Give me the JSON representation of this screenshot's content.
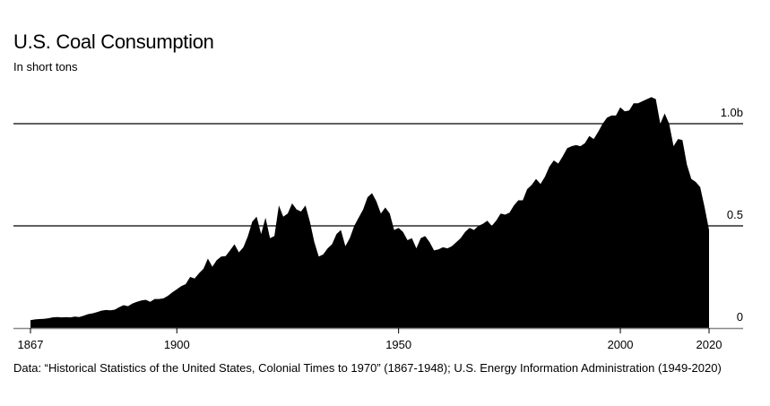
{
  "chart_data": {
    "type": "area",
    "title": "U.S. Coal Consumption",
    "subtitle": "In short tons",
    "xlabel": "",
    "ylabel": "",
    "xlim": [
      1867,
      2020
    ],
    "ylim": [
      0,
      1.0
    ],
    "y_unit": "billion short tons",
    "grid": true,
    "x_ticks": [
      {
        "value": 1867,
        "label": "1867"
      },
      {
        "value": 1900,
        "label": "1900"
      },
      {
        "value": 1950,
        "label": "1950"
      },
      {
        "value": 2000,
        "label": "2000"
      },
      {
        "value": 2020,
        "label": "2020"
      }
    ],
    "y_ticks": [
      {
        "value": 0,
        "label": "0"
      },
      {
        "value": 0.5,
        "label": "0.5"
      },
      {
        "value": 1.0,
        "label": "1.0b"
      }
    ],
    "fill_color": "#000000",
    "series": [
      {
        "name": "U.S. Coal Consumption",
        "x": [
          1867,
          1868,
          1869,
          1870,
          1871,
          1872,
          1873,
          1874,
          1875,
          1876,
          1877,
          1878,
          1879,
          1880,
          1881,
          1882,
          1883,
          1884,
          1885,
          1886,
          1887,
          1888,
          1889,
          1890,
          1891,
          1892,
          1893,
          1894,
          1895,
          1896,
          1897,
          1898,
          1899,
          1900,
          1901,
          1902,
          1903,
          1904,
          1905,
          1906,
          1907,
          1908,
          1909,
          1910,
          1911,
          1912,
          1913,
          1914,
          1915,
          1916,
          1917,
          1918,
          1919,
          1920,
          1921,
          1922,
          1923,
          1924,
          1925,
          1926,
          1927,
          1928,
          1929,
          1930,
          1931,
          1932,
          1933,
          1934,
          1935,
          1936,
          1937,
          1938,
          1939,
          1940,
          1941,
          1942,
          1943,
          1944,
          1945,
          1946,
          1947,
          1948,
          1949,
          1950,
          1951,
          1952,
          1953,
          1954,
          1955,
          1956,
          1957,
          1958,
          1959,
          1960,
          1961,
          1962,
          1963,
          1964,
          1965,
          1966,
          1967,
          1968,
          1969,
          1970,
          1971,
          1972,
          1973,
          1974,
          1975,
          1976,
          1977,
          1978,
          1979,
          1980,
          1981,
          1982,
          1983,
          1984,
          1985,
          1986,
          1987,
          1988,
          1989,
          1990,
          1991,
          1992,
          1993,
          1994,
          1995,
          1996,
          1997,
          1998,
          1999,
          2000,
          2001,
          2002,
          2003,
          2004,
          2005,
          2006,
          2007,
          2008,
          2009,
          2010,
          2011,
          2012,
          2013,
          2014,
          2015,
          2016,
          2017,
          2018,
          2019,
          2020
        ],
        "values": [
          0.038,
          0.042,
          0.044,
          0.045,
          0.048,
          0.052,
          0.054,
          0.052,
          0.053,
          0.052,
          0.056,
          0.054,
          0.06,
          0.068,
          0.072,
          0.078,
          0.085,
          0.088,
          0.087,
          0.09,
          0.102,
          0.112,
          0.107,
          0.12,
          0.128,
          0.135,
          0.138,
          0.128,
          0.142,
          0.142,
          0.145,
          0.158,
          0.175,
          0.19,
          0.205,
          0.215,
          0.25,
          0.242,
          0.268,
          0.29,
          0.34,
          0.3,
          0.332,
          0.35,
          0.352,
          0.38,
          0.41,
          0.37,
          0.395,
          0.448,
          0.52,
          0.545,
          0.46,
          0.54,
          0.44,
          0.45,
          0.6,
          0.545,
          0.56,
          0.61,
          0.58,
          0.57,
          0.6,
          0.52,
          0.42,
          0.35,
          0.36,
          0.39,
          0.41,
          0.46,
          0.48,
          0.4,
          0.44,
          0.5,
          0.54,
          0.58,
          0.64,
          0.66,
          0.62,
          0.56,
          0.59,
          0.56,
          0.48,
          0.49,
          0.47,
          0.43,
          0.44,
          0.39,
          0.44,
          0.45,
          0.42,
          0.38,
          0.385,
          0.395,
          0.39,
          0.4,
          0.42,
          0.44,
          0.47,
          0.49,
          0.48,
          0.5,
          0.51,
          0.525,
          0.5,
          0.525,
          0.56,
          0.555,
          0.565,
          0.6,
          0.625,
          0.625,
          0.68,
          0.7,
          0.73,
          0.705,
          0.74,
          0.79,
          0.82,
          0.805,
          0.84,
          0.88,
          0.89,
          0.895,
          0.89,
          0.905,
          0.94,
          0.925,
          0.96,
          1.0,
          1.03,
          1.04,
          1.04,
          1.08,
          1.06,
          1.065,
          1.1,
          1.1,
          1.11,
          1.12,
          1.13,
          1.12,
          1.0,
          1.05,
          1.0,
          0.89,
          0.925,
          0.92,
          0.8,
          0.73,
          0.715,
          0.69,
          0.59,
          0.48
        ]
      }
    ]
  },
  "header": {
    "title": "U.S. Coal Consumption",
    "subtitle": "In short tons"
  },
  "footer": {
    "source": "Data: “Historical Statistics of the United States, Colonial Times to 1970” (1867-1948); U.S. Energy Information Administration (1949-2020)"
  }
}
